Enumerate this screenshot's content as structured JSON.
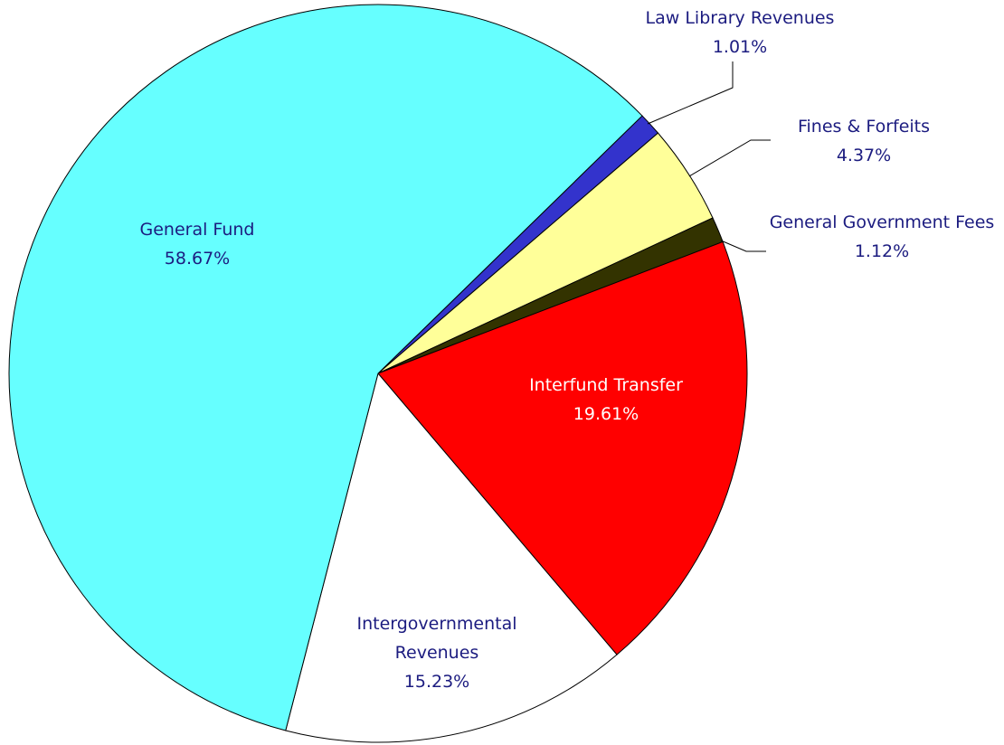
{
  "chart_data": {
    "type": "pie",
    "categories": [
      "Law Library Revenues",
      "Fines & Forfeits",
      "General Government Fees",
      "Interfund Transfer",
      "Intergovernmental Revenues",
      "General Fund"
    ],
    "values": [
      1.01,
      4.37,
      1.12,
      19.61,
      15.23,
      58.67
    ],
    "value_labels": [
      "1.01%",
      "4.37%",
      "1.12%",
      "19.61%",
      "15.23%",
      "58.67%"
    ],
    "colors": [
      "#3333cc",
      "#ffff99",
      "#333300",
      "#ff0000",
      "#ffffff",
      "#66ffff"
    ]
  }
}
